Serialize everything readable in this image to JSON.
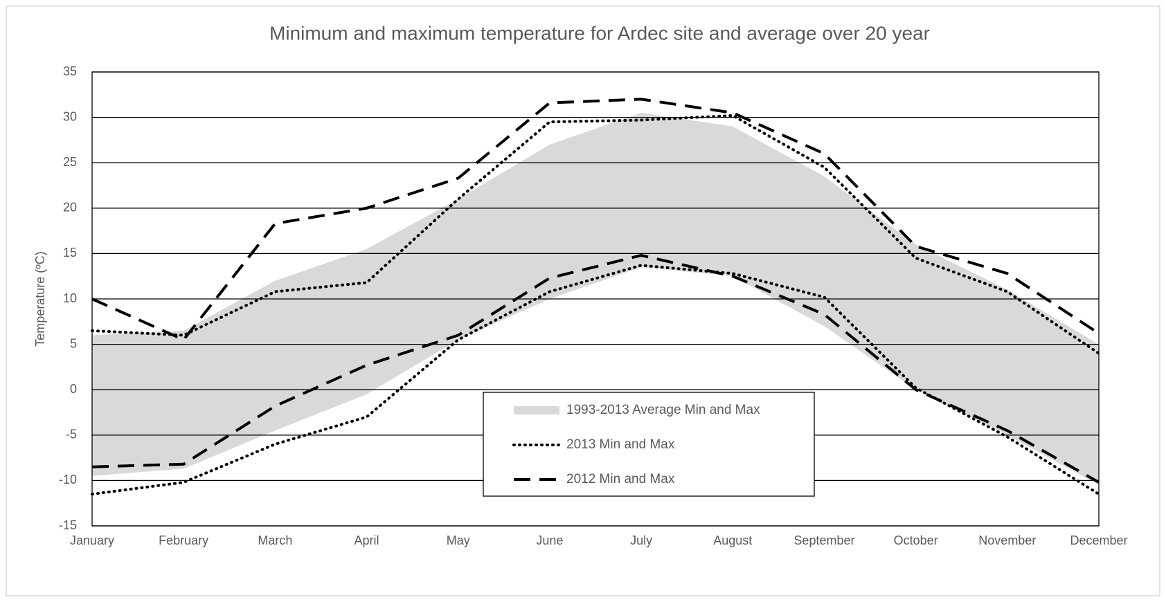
{
  "chart_data": {
    "type": "line",
    "title": "Minimum and maximum temperature for Ardec site and average over 20 year",
    "y_label": "Temperature  (ºC)",
    "categories": [
      "January",
      "February",
      "March",
      "April",
      "May",
      "June",
      "July",
      "August",
      "September",
      "October",
      "November",
      "December"
    ],
    "ylim": [
      -15,
      35
    ],
    "yticks": [
      -15,
      -10,
      -5,
      0,
      5,
      10,
      15,
      20,
      25,
      30,
      35
    ],
    "grid": true,
    "series": [
      {
        "name": "1993-2013 Average Min and Max",
        "color": "#d9d9d9",
        "style": "band",
        "max": [
          6,
          6.5,
          12,
          15.5,
          21,
          27,
          30.5,
          29,
          23.5,
          16,
          11,
          5
        ],
        "min": [
          -9.5,
          -8.7,
          -4.5,
          -0.5,
          5.5,
          10,
          13.5,
          12.5,
          7,
          0,
          -5,
          -10.5
        ]
      },
      {
        "name": "2013 Min and Max",
        "color": "#000000",
        "style": "dotted",
        "max": [
          6.5,
          6,
          10.8,
          11.8,
          21,
          29.5,
          29.7,
          30.2,
          24.5,
          14.5,
          10.8,
          4
        ],
        "min": [
          -11.5,
          -10.2,
          -6,
          -3,
          5.5,
          10.8,
          13.7,
          12.8,
          10.2,
          0.2,
          -5.2,
          -11.5
        ]
      },
      {
        "name": "2012 Min and Max",
        "color": "#000000",
        "style": "dashed",
        "max": [
          10,
          5.5,
          18.3,
          20,
          23.3,
          31.6,
          32,
          30.5,
          26,
          15.8,
          12.8,
          6.2
        ],
        "min": [
          -8.5,
          -8.2,
          -1.8,
          2.7,
          6,
          12.3,
          14.8,
          12.5,
          8.3,
          0,
          -4.5,
          -10.2
        ]
      }
    ]
  }
}
